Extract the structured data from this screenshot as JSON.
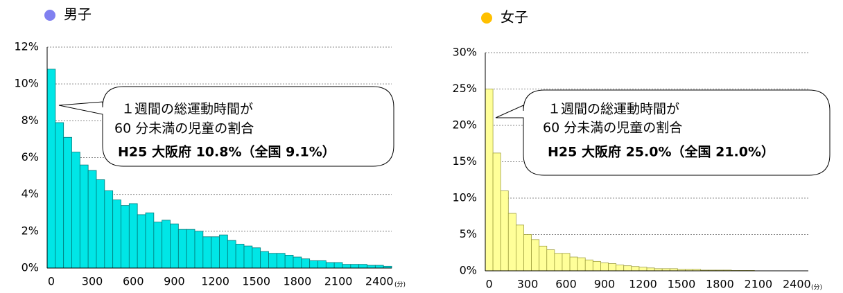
{
  "chart_data": [
    {
      "type": "bar",
      "title": "男子",
      "title_marker_color": "#8080f0",
      "color": "#00e6e6",
      "edge_color": "#007a7a",
      "categories": [
        0,
        null,
        null,
        null,
        null,
        300,
        null,
        null,
        null,
        null,
        600,
        null,
        null,
        null,
        null,
        900,
        null,
        null,
        null,
        null,
        1200,
        null,
        null,
        null,
        null,
        1500,
        null,
        null,
        null,
        null,
        1800,
        null,
        null,
        null,
        null,
        2100,
        null,
        null,
        null,
        null,
        2400,
        null
      ],
      "values": [
        10.8,
        7.9,
        7.1,
        6.3,
        5.6,
        5.3,
        4.8,
        4.2,
        3.7,
        3.4,
        3.5,
        2.9,
        3.0,
        2.5,
        2.6,
        2.4,
        2.1,
        2.1,
        2.0,
        1.7,
        1.7,
        1.8,
        1.5,
        1.3,
        1.2,
        1.1,
        0.9,
        0.8,
        0.8,
        0.7,
        0.6,
        0.5,
        0.4,
        0.4,
        0.3,
        0.3,
        0.2,
        0.2,
        0.2,
        0.15,
        0.15,
        0.1
      ],
      "ylim": [
        0,
        12
      ],
      "yticks": [
        {
          "value": 0,
          "label": "0%"
        },
        {
          "value": 2,
          "label": "2%"
        },
        {
          "value": 4,
          "label": "4%"
        },
        {
          "value": 6,
          "label": "6%"
        },
        {
          "value": 8,
          "label": "8%"
        },
        {
          "value": 10,
          "label": "10%"
        },
        {
          "value": 12,
          "label": "12%"
        }
      ],
      "grid": true,
      "x_unit": "(分)",
      "annotation": [
        "１週間の総運動時間が",
        "60 分未満の児童の割合",
        "H25 大阪府 10.8%（全国 9.1%）"
      ]
    },
    {
      "type": "bar",
      "title": "女子",
      "title_marker_color": "#ffc000",
      "color": "#ffff99",
      "edge_color": "#a0a040",
      "categories": [
        0,
        null,
        null,
        null,
        null,
        300,
        null,
        null,
        null,
        null,
        600,
        null,
        null,
        null,
        null,
        900,
        null,
        null,
        null,
        null,
        1200,
        null,
        null,
        null,
        null,
        1500,
        null,
        null,
        null,
        null,
        1800,
        null,
        null,
        null,
        null,
        2100,
        null,
        null,
        null,
        null,
        2400,
        null
      ],
      "values": [
        25.0,
        16.2,
        11.0,
        7.9,
        6.3,
        5.0,
        4.3,
        3.4,
        2.9,
        2.4,
        2.4,
        1.9,
        1.8,
        1.5,
        1.3,
        1.1,
        1.0,
        0.8,
        0.7,
        0.6,
        0.5,
        0.4,
        0.3,
        0.3,
        0.3,
        0.2,
        0.2,
        0.2,
        0.1,
        0.1,
        0.1,
        0.1,
        0.05,
        0.05,
        0.05,
        0,
        0,
        0,
        0,
        0,
        0,
        0
      ],
      "ylim": [
        0,
        30
      ],
      "yticks": [
        {
          "value": 0,
          "label": "0%"
        },
        {
          "value": 5,
          "label": "5%"
        },
        {
          "value": 10,
          "label": "10%"
        },
        {
          "value": 15,
          "label": "15%"
        },
        {
          "value": 20,
          "label": "20%"
        },
        {
          "value": 25,
          "label": "25%"
        },
        {
          "value": 30,
          "label": "30%"
        }
      ],
      "grid": true,
      "x_unit": "(分)",
      "annotation": [
        "１週間の総運動時間が",
        "60 分未満の児童の割合",
        "H25 大阪府 25.0%（全国 21.0%）"
      ]
    }
  ]
}
